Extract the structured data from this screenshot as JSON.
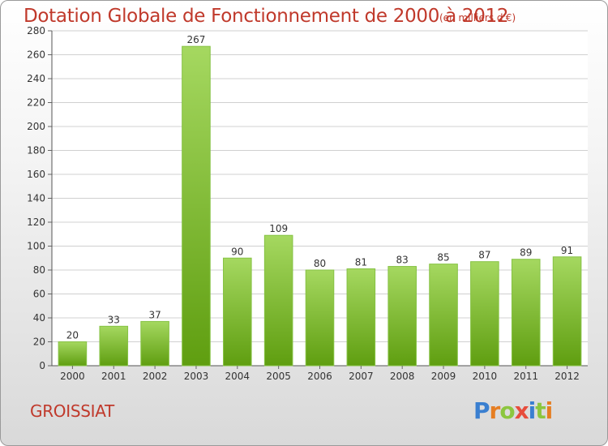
{
  "title": "Dotation Globale de Fonctionnement de 2000 à 2012",
  "subtitle": "(en milliers d'€)",
  "town": "GROISSIAT",
  "logo": {
    "letters": [
      {
        "ch": "P",
        "color": "#3a7fd0"
      },
      {
        "ch": "r",
        "color": "#e67e22"
      },
      {
        "ch": "o",
        "color": "#8cc63f"
      },
      {
        "ch": "x",
        "color": "#e74c3c"
      },
      {
        "ch": "i",
        "color": "#3a7fd0"
      },
      {
        "ch": "t",
        "color": "#8cc63f"
      },
      {
        "ch": "i",
        "color": "#e67e22"
      }
    ]
  },
  "colors": {
    "bar_top": "#a5d860",
    "bar_bottom": "#5f9e10",
    "title": "#c0392b"
  },
  "chart_data": {
    "type": "bar",
    "categories": [
      "2000",
      "2001",
      "2002",
      "2003",
      "2004",
      "2005",
      "2006",
      "2007",
      "2008",
      "2009",
      "2010",
      "2011",
      "2012"
    ],
    "values": [
      20,
      33,
      37,
      267,
      90,
      109,
      80,
      81,
      83,
      85,
      87,
      89,
      91
    ],
    "ylim": [
      0,
      280
    ],
    "yticks": [
      0,
      20,
      40,
      60,
      80,
      100,
      120,
      140,
      160,
      180,
      200,
      220,
      240,
      260,
      280
    ],
    "grid": true,
    "title": "Dotation Globale de Fonctionnement de 2000 à 2012",
    "subtitle": "(en milliers d'€)"
  }
}
